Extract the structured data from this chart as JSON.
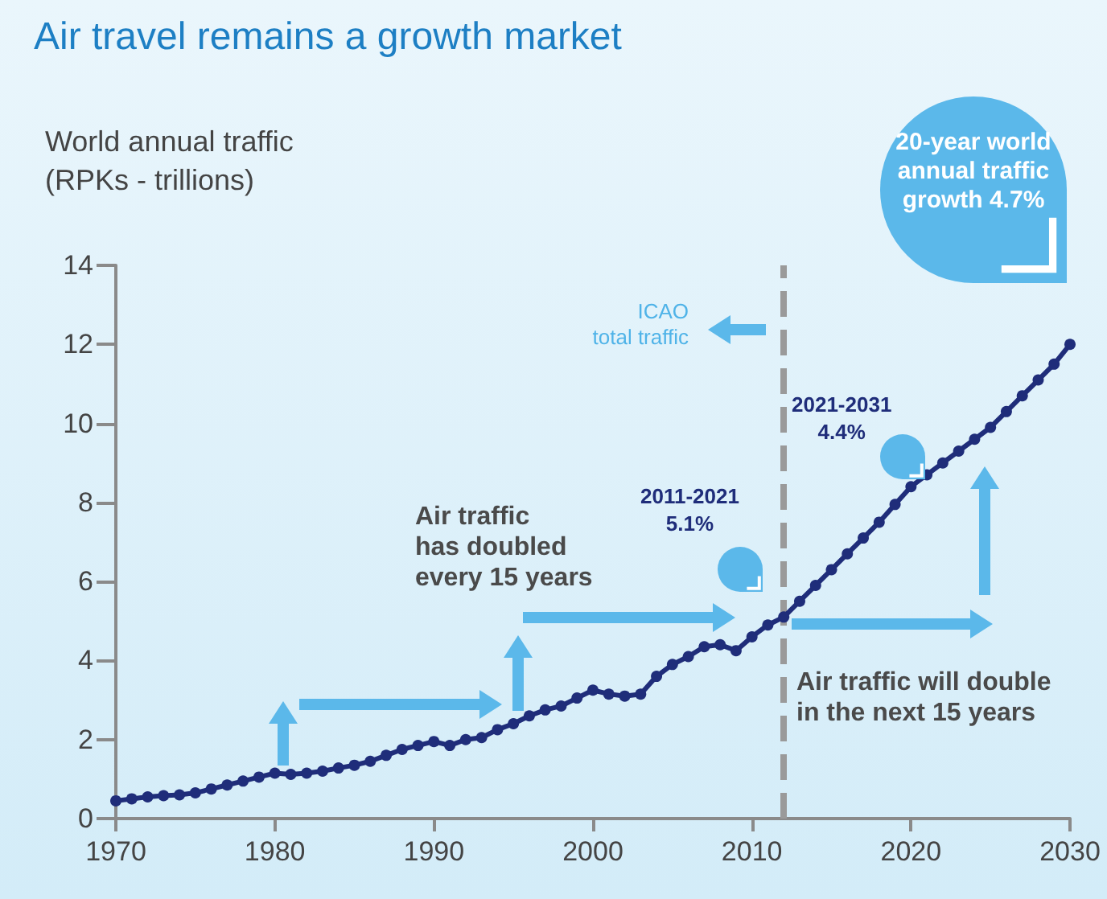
{
  "chart_data": {
    "type": "line",
    "title": "Air travel remains a growth market",
    "ylabel": "World annual traffic\n(RPKs - trillions)",
    "annotations": [
      "Air traffic\nhas doubled\nevery 15 years",
      "Air traffic will double\nin the next 15 years",
      "2011-2021\n5.1%",
      "2021-2031\n4.4%",
      "20-year world\nannual traffic\ngrowth 4.7%",
      "ICAO\ntotal traffic"
    ],
    "x": [
      1970,
      1971,
      1972,
      1973,
      1974,
      1975,
      1976,
      1977,
      1978,
      1979,
      1980,
      1981,
      1982,
      1983,
      1984,
      1985,
      1986,
      1987,
      1988,
      1989,
      1990,
      1991,
      1992,
      1993,
      1994,
      1995,
      1996,
      1997,
      1998,
      1999,
      2000,
      2001,
      2002,
      2003,
      2004,
      2005,
      2006,
      2007,
      2008,
      2009,
      2010,
      2011,
      2012,
      2013,
      2014,
      2015,
      2016,
      2017,
      2018,
      2019,
      2020,
      2021,
      2022,
      2023,
      2024,
      2025,
      2026,
      2027,
      2028,
      2029,
      2030
    ],
    "series": [
      {
        "color": "#1f2d7a",
        "values": [
          0.45,
          0.5,
          0.55,
          0.58,
          0.6,
          0.65,
          0.75,
          0.85,
          0.95,
          1.05,
          1.15,
          1.12,
          1.15,
          1.2,
          1.28,
          1.35,
          1.45,
          1.6,
          1.75,
          1.85,
          1.95,
          1.85,
          2.0,
          2.05,
          2.25,
          2.4,
          2.6,
          2.75,
          2.85,
          3.05,
          3.25,
          3.15,
          3.1,
          3.15,
          3.6,
          3.9,
          4.1,
          4.35,
          4.4,
          4.25,
          4.6,
          4.9,
          5.1,
          5.5,
          5.9,
          6.3,
          6.7,
          7.1,
          7.5,
          7.95,
          8.4,
          8.7,
          9.0,
          9.3,
          9.6,
          9.9,
          10.3,
          10.7,
          11.1,
          11.5,
          12.0
        ]
      }
    ],
    "xlim": [
      1970,
      2030
    ],
    "xticks": [
      1970,
      1980,
      1990,
      2000,
      2010,
      2020,
      2030
    ],
    "ylim": [
      0,
      14
    ],
    "yticks": [
      0,
      2,
      4,
      6,
      8,
      10,
      12,
      14
    ],
    "ref_lines": [
      {
        "axis": "x",
        "value": 2012,
        "color": "#9a9a9a",
        "line_style": "dashed"
      }
    ],
    "grid": false,
    "marker": "circle",
    "line_style": "solid"
  }
}
